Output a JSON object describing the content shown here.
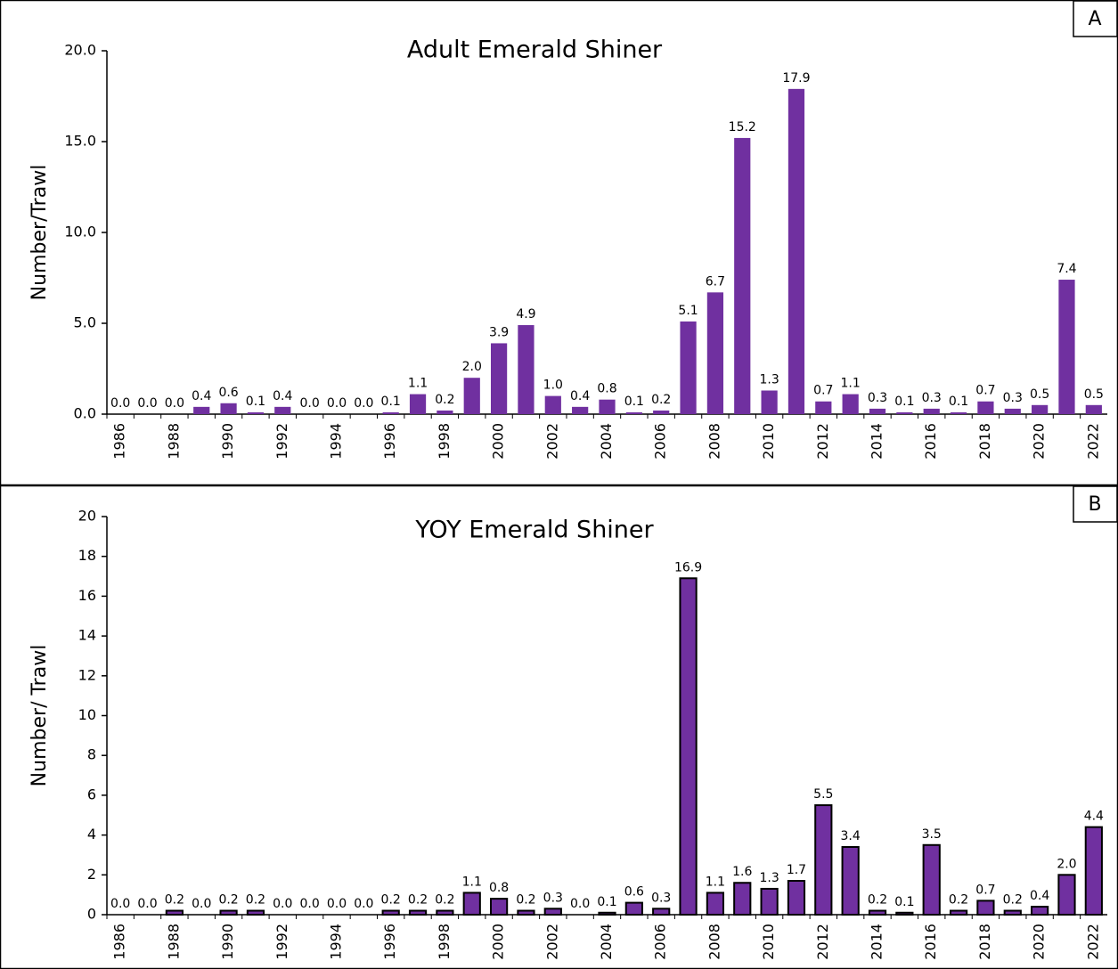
{
  "chart_data": [
    {
      "type": "bar",
      "panel_label": "A",
      "title": "Adult Emerald Shiner",
      "y_label": "Number/Trawl",
      "color": "#7030a0",
      "edgecolor": null,
      "categories": [
        "1986",
        null,
        "1988",
        null,
        "1990",
        null,
        "1992",
        null,
        "1994",
        null,
        "1996",
        null,
        "1998",
        null,
        "2000",
        null,
        "2002",
        null,
        "2004",
        null,
        "2006",
        null,
        "2008",
        null,
        "2010",
        null,
        "2012",
        null,
        "2014",
        null,
        "2016",
        null,
        "2018",
        null,
        "2020",
        null,
        "2022"
      ],
      "values": [
        0.0,
        0.0,
        0.0,
        0.4,
        0.6,
        0.1,
        0.4,
        0.0,
        0.0,
        0.0,
        0.1,
        1.1,
        0.2,
        2.0,
        3.9,
        4.9,
        1.0,
        0.4,
        0.8,
        0.1,
        0.2,
        5.1,
        6.7,
        15.2,
        1.3,
        17.9,
        0.7,
        1.1,
        0.3,
        0.1,
        0.3,
        0.1,
        0.7,
        0.3,
        0.5,
        7.4,
        0.5
      ],
      "value_labels": [
        "0.0",
        "0.0",
        "0.0",
        "0.4",
        "0.6",
        "0.1",
        "0.4",
        "0.0",
        "0.0",
        "0.0",
        "0.1",
        "1.1",
        "0.2",
        "2.0",
        "3.9",
        "4.9",
        "1.0",
        "0.4",
        "0.8",
        "0.1",
        "0.2",
        "5.1",
        "6.7",
        "15.2",
        "1.3",
        "17.9",
        "0.7",
        "1.1",
        "0.3",
        "0.1",
        "0.3",
        "0.1",
        "0.7",
        "0.3",
        "0.5",
        "7.4",
        "0.5"
      ],
      "ylim": [
        0,
        20
      ],
      "yticks": [
        {
          "value": 0,
          "label": "0.0"
        },
        {
          "value": 5,
          "label": "5.0"
        },
        {
          "value": 10,
          "label": "10.0"
        },
        {
          "value": 15,
          "label": "15.0"
        },
        {
          "value": 20,
          "label": "20.0"
        }
      ]
    },
    {
      "type": "bar",
      "panel_label": "B",
      "title": "YOY Emerald Shiner",
      "y_label": "Number/ Trawl",
      "color": "#7030a0",
      "edgecolor": "#000000",
      "categories": [
        "1986",
        null,
        "1988",
        null,
        "1990",
        null,
        "1992",
        null,
        "1994",
        null,
        "1996",
        null,
        "1998",
        null,
        "2000",
        null,
        "2002",
        null,
        "2004",
        null,
        "2006",
        null,
        "2008",
        null,
        "2010",
        null,
        "2012",
        null,
        "2014",
        null,
        "2016",
        null,
        "2018",
        null,
        "2020",
        null,
        "2022"
      ],
      "values": [
        0.0,
        0.0,
        0.2,
        0.0,
        0.2,
        0.2,
        0.0,
        0.0,
        0.0,
        0.0,
        0.2,
        0.2,
        0.2,
        1.1,
        0.8,
        0.2,
        0.3,
        0.0,
        0.1,
        0.6,
        0.3,
        16.9,
        1.1,
        1.6,
        1.3,
        1.7,
        5.5,
        3.4,
        0.2,
        0.1,
        3.5,
        0.2,
        0.7,
        0.2,
        0.4,
        2.0,
        4.4
      ],
      "value_labels": [
        "0.0",
        "0.0",
        "0.2",
        "0.0",
        "0.2",
        "0.2",
        "0.0",
        "0.0",
        "0.0",
        "0.0",
        "0.2",
        "0.2",
        "0.2",
        "1.1",
        "0.8",
        "0.2",
        "0.3",
        "0.0",
        "0.1",
        "0.6",
        "0.3",
        "16.9",
        "1.1",
        "1.6",
        "1.3",
        "1.7",
        "5.5",
        "3.4",
        "0.2",
        "0.1",
        "3.5",
        "0.2",
        "0.7",
        "0.2",
        "0.4",
        "2.0",
        "4.4"
      ],
      "ylim": [
        0,
        20
      ],
      "yticks": [
        0,
        2,
        4,
        6,
        8,
        10,
        12,
        14,
        16,
        18,
        20
      ]
    }
  ]
}
